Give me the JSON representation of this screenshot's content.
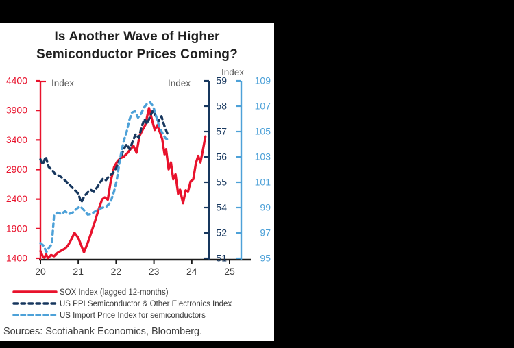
{
  "window": {
    "frame_color": "#000000",
    "card_bg": "#ffffff"
  },
  "title": {
    "line1": "Is Another Wave of Higher",
    "line2": "Semiconductor Prices Coming?"
  },
  "sources": "Sources: Scotiabank Economics, Bloomberg.",
  "colors": {
    "red": "#e8122c",
    "navy": "#17375e",
    "light_blue": "#4da1d8",
    "gray_label": "#595959",
    "axis_black": "#1a1a1a",
    "text": "#3a3a3a"
  },
  "chart_data": {
    "type": "line",
    "title": "Is Another Wave of Higher Semiconductor Prices Coming?",
    "grid": false,
    "legend_position": "bottom-left",
    "x_axis": {
      "tick_labels": [
        "20",
        "21",
        "22",
        "23",
        "24",
        "25"
      ],
      "min": 20,
      "max": 25
    },
    "axes": {
      "left": {
        "label": "Index",
        "color": "#e8122c",
        "tick_labels": [
          "4400",
          "3900",
          "3400",
          "2900",
          "2400",
          "1900",
          "1400"
        ],
        "value_top": 4400,
        "value_bottom": 1400
      },
      "right_inner": {
        "label": "Index",
        "color": "#17375e",
        "tick_labels": [
          "59",
          "58",
          "57",
          "56",
          "55",
          "54",
          "52",
          "51"
        ],
        "value_top": 59,
        "value_bottom": 52
      },
      "right_outer": {
        "label": "Index",
        "color": "#4da1d8",
        "tick_labels": [
          "109",
          "107",
          "105",
          "103",
          "101",
          "99",
          "97",
          "95"
        ],
        "value_top": 109,
        "value_bottom": 95
      }
    },
    "series": [
      {
        "name": "SOX Index (lagged 12-months)",
        "axis": "left",
        "color": "#e8122c",
        "dash": "solid",
        "points": [
          [
            20.0,
            1520
          ],
          [
            20.05,
            1445
          ],
          [
            20.1,
            1410
          ],
          [
            20.15,
            1465
          ],
          [
            20.2,
            1405
          ],
          [
            20.28,
            1455
          ],
          [
            20.36,
            1435
          ],
          [
            20.45,
            1490
          ],
          [
            20.55,
            1530
          ],
          [
            20.65,
            1565
          ],
          [
            20.73,
            1620
          ],
          [
            20.8,
            1700
          ],
          [
            20.9,
            1830
          ],
          [
            21.0,
            1745
          ],
          [
            21.08,
            1615
          ],
          [
            21.15,
            1500
          ],
          [
            21.25,
            1660
          ],
          [
            21.35,
            1845
          ],
          [
            21.45,
            2040
          ],
          [
            21.55,
            2250
          ],
          [
            21.63,
            2395
          ],
          [
            21.7,
            2430
          ],
          [
            21.78,
            2390
          ],
          [
            21.86,
            2710
          ],
          [
            21.95,
            2945
          ],
          [
            22.04,
            3045
          ],
          [
            22.12,
            3095
          ],
          [
            22.2,
            3115
          ],
          [
            22.3,
            3180
          ],
          [
            22.38,
            3245
          ],
          [
            22.46,
            3300
          ],
          [
            22.54,
            3185
          ],
          [
            22.62,
            3470
          ],
          [
            22.7,
            3570
          ],
          [
            22.77,
            3650
          ],
          [
            22.87,
            3940
          ],
          [
            22.96,
            3715
          ],
          [
            23.02,
            3570
          ],
          [
            23.09,
            3650
          ],
          [
            23.16,
            3530
          ],
          [
            23.22,
            3415
          ],
          [
            23.28,
            3160
          ],
          [
            23.32,
            3245
          ],
          [
            23.39,
            2905
          ],
          [
            23.45,
            3020
          ],
          [
            23.51,
            2735
          ],
          [
            23.57,
            2820
          ],
          [
            23.64,
            2490
          ],
          [
            23.69,
            2560
          ],
          [
            23.77,
            2330
          ],
          [
            23.84,
            2550
          ],
          [
            23.9,
            2520
          ],
          [
            23.97,
            2700
          ],
          [
            24.04,
            2735
          ],
          [
            24.11,
            3010
          ],
          [
            24.17,
            3130
          ],
          [
            24.23,
            3020
          ],
          [
            24.3,
            3250
          ],
          [
            24.36,
            3460
          ]
        ]
      },
      {
        "name": "US PPI Semiconductor & Other Electronics Index",
        "axis": "right_inner",
        "color": "#17375e",
        "dash": "dashed",
        "points": [
          [
            20.0,
            55.9
          ],
          [
            20.06,
            55.7
          ],
          [
            20.14,
            56.0
          ],
          [
            20.22,
            55.6
          ],
          [
            20.3,
            55.5
          ],
          [
            20.4,
            55.3
          ],
          [
            20.5,
            55.25
          ],
          [
            20.6,
            55.15
          ],
          [
            20.7,
            55.0
          ],
          [
            20.8,
            54.85
          ],
          [
            20.9,
            54.7
          ],
          [
            21.0,
            54.55
          ],
          [
            21.08,
            54.2
          ],
          [
            21.16,
            54.45
          ],
          [
            21.25,
            54.6
          ],
          [
            21.33,
            54.7
          ],
          [
            21.41,
            54.62
          ],
          [
            21.5,
            54.8
          ],
          [
            21.58,
            55.0
          ],
          [
            21.66,
            55.15
          ],
          [
            21.73,
            55.08
          ],
          [
            21.82,
            55.25
          ],
          [
            21.91,
            55.35
          ],
          [
            22.0,
            55.55
          ],
          [
            22.1,
            55.9
          ],
          [
            22.2,
            56.3
          ],
          [
            22.28,
            56.5
          ],
          [
            22.36,
            56.3
          ],
          [
            22.45,
            56.65
          ],
          [
            22.52,
            56.9
          ],
          [
            22.6,
            56.75
          ],
          [
            22.68,
            57.2
          ],
          [
            22.75,
            57.5
          ],
          [
            22.82,
            57.3
          ],
          [
            22.9,
            57.6
          ],
          [
            22.98,
            57.85
          ],
          [
            23.05,
            57.6
          ],
          [
            23.12,
            57.4
          ],
          [
            23.2,
            57.6
          ],
          [
            23.28,
            57.2
          ],
          [
            23.36,
            56.9
          ]
        ]
      },
      {
        "name": "US Import Price Index for semiconductors",
        "axis": "right_outer",
        "color": "#4da1d8",
        "dash": "dashed",
        "points": [
          [
            20.0,
            96.2
          ],
          [
            20.08,
            96.0
          ],
          [
            20.16,
            95.5
          ],
          [
            20.24,
            95.9
          ],
          [
            20.3,
            96.1
          ],
          [
            20.36,
            98.4
          ],
          [
            20.45,
            98.6
          ],
          [
            20.55,
            98.5
          ],
          [
            20.65,
            98.7
          ],
          [
            20.75,
            98.5
          ],
          [
            20.85,
            98.6
          ],
          [
            20.95,
            98.9
          ],
          [
            21.05,
            99.1
          ],
          [
            21.15,
            98.8
          ],
          [
            21.25,
            98.45
          ],
          [
            21.35,
            98.5
          ],
          [
            21.45,
            98.7
          ],
          [
            21.55,
            98.9
          ],
          [
            21.65,
            99.0
          ],
          [
            21.75,
            99.1
          ],
          [
            21.85,
            99.4
          ],
          [
            21.95,
            100.3
          ],
          [
            22.02,
            101.2
          ],
          [
            22.08,
            102.4
          ],
          [
            22.14,
            103.4
          ],
          [
            22.2,
            104.2
          ],
          [
            22.28,
            105.0
          ],
          [
            22.35,
            105.9
          ],
          [
            22.42,
            106.5
          ],
          [
            22.5,
            106.6
          ],
          [
            22.58,
            106.1
          ],
          [
            22.66,
            106.4
          ],
          [
            22.74,
            106.9
          ],
          [
            22.82,
            107.2
          ],
          [
            22.9,
            107.3
          ],
          [
            22.98,
            107.0
          ],
          [
            23.06,
            106.2
          ],
          [
            23.14,
            105.4
          ],
          [
            23.22,
            104.9
          ],
          [
            23.3,
            104.5
          ],
          [
            23.38,
            104.3
          ]
        ]
      }
    ]
  }
}
